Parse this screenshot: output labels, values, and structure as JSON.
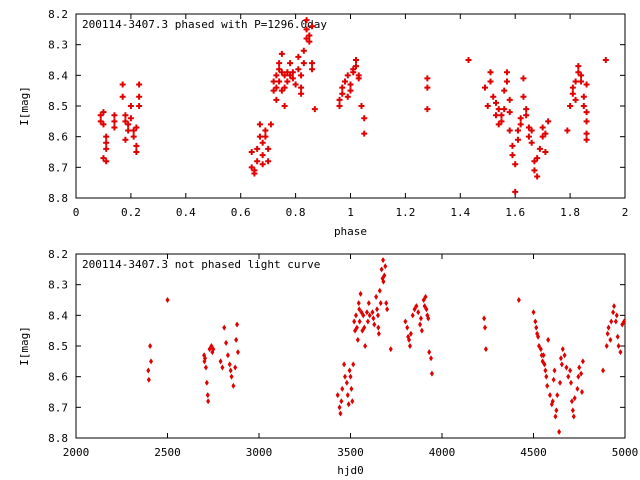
{
  "chart_data": [
    {
      "type": "scatter",
      "title": "200114-3407.3 phased with P=1296.0day",
      "xlabel": "phase",
      "ylabel": "I[mag]",
      "xlim": [
        0,
        2
      ],
      "ylim": [
        8.8,
        8.2
      ],
      "y_inverted": true,
      "xticks": [
        "0",
        "0.2",
        "0.4",
        "0.6",
        "0.8",
        "1",
        "1.2",
        "1.4",
        "1.6",
        "1.8",
        "2"
      ],
      "xtick_values": [
        0,
        0.2,
        0.4,
        0.6,
        0.8,
        1.0,
        1.2,
        1.4,
        1.6,
        1.8,
        2.0
      ],
      "yticks": [
        "8.2",
        "8.3",
        "8.4",
        "8.5",
        "8.6",
        "8.7",
        "8.8"
      ],
      "ytick_values": [
        8.2,
        8.3,
        8.4,
        8.5,
        8.6,
        8.7,
        8.8
      ],
      "marker": "star",
      "color": "#e00000",
      "points": [
        [
          0.09,
          8.53
        ],
        [
          0.09,
          8.55
        ],
        [
          0.1,
          8.52
        ],
        [
          0.1,
          8.56
        ],
        [
          0.11,
          8.6
        ],
        [
          0.11,
          8.62
        ],
        [
          0.11,
          8.64
        ],
        [
          0.1,
          8.67
        ],
        [
          0.11,
          8.68
        ],
        [
          0.14,
          8.53
        ],
        [
          0.14,
          8.55
        ],
        [
          0.14,
          8.57
        ],
        [
          0.17,
          8.43
        ],
        [
          0.17,
          8.47
        ],
        [
          0.18,
          8.53
        ],
        [
          0.18,
          8.55
        ],
        [
          0.18,
          8.61
        ],
        [
          0.19,
          8.56
        ],
        [
          0.19,
          8.58
        ],
        [
          0.2,
          8.5
        ],
        [
          0.2,
          8.54
        ],
        [
          0.21,
          8.58
        ],
        [
          0.21,
          8.6
        ],
        [
          0.22,
          8.57
        ],
        [
          0.22,
          8.63
        ],
        [
          0.22,
          8.65
        ],
        [
          0.23,
          8.43
        ],
        [
          0.23,
          8.47
        ],
        [
          0.23,
          8.5
        ],
        [
          0.64,
          8.65
        ],
        [
          0.64,
          8.7
        ],
        [
          0.65,
          8.71
        ],
        [
          0.65,
          8.72
        ],
        [
          0.66,
          8.68
        ],
        [
          0.66,
          8.64
        ],
        [
          0.67,
          8.56
        ],
        [
          0.67,
          8.6
        ],
        [
          0.68,
          8.62
        ],
        [
          0.68,
          8.66
        ],
        [
          0.68,
          8.69
        ],
        [
          0.69,
          8.58
        ],
        [
          0.69,
          8.6
        ],
        [
          0.7,
          8.64
        ],
        [
          0.7,
          8.68
        ],
        [
          0.71,
          8.56
        ],
        [
          0.72,
          8.42
        ],
        [
          0.72,
          8.45
        ],
        [
          0.73,
          8.4
        ],
        [
          0.73,
          8.44
        ],
        [
          0.73,
          8.48
        ],
        [
          0.74,
          8.36
        ],
        [
          0.74,
          8.38
        ],
        [
          0.74,
          8.42
        ],
        [
          0.75,
          8.33
        ],
        [
          0.75,
          8.39
        ],
        [
          0.75,
          8.45
        ],
        [
          0.76,
          8.4
        ],
        [
          0.76,
          8.44
        ],
        [
          0.76,
          8.5
        ],
        [
          0.77,
          8.39
        ],
        [
          0.77,
          8.42
        ],
        [
          0.78,
          8.36
        ],
        [
          0.78,
          8.4
        ],
        [
          0.79,
          8.39
        ],
        [
          0.79,
          8.41
        ],
        [
          0.8,
          8.43
        ],
        [
          0.81,
          8.34
        ],
        [
          0.81,
          8.38
        ],
        [
          0.82,
          8.4
        ],
        [
          0.82,
          8.44
        ],
        [
          0.82,
          8.46
        ],
        [
          0.83,
          8.32
        ],
        [
          0.83,
          8.36
        ],
        [
          0.84,
          8.25
        ],
        [
          0.84,
          8.28
        ],
        [
          0.84,
          8.22
        ],
        [
          0.85,
          8.29
        ],
        [
          0.85,
          8.27
        ],
        [
          0.86,
          8.24
        ],
        [
          0.86,
          8.36
        ],
        [
          0.86,
          8.38
        ],
        [
          0.87,
          8.51
        ],
        [
          0.96,
          8.48
        ],
        [
          0.96,
          8.5
        ],
        [
          0.97,
          8.44
        ],
        [
          0.97,
          8.46
        ],
        [
          0.98,
          8.42
        ],
        [
          0.99,
          8.4
        ],
        [
          0.99,
          8.47
        ],
        [
          1.0,
          8.45
        ],
        [
          1.0,
          8.43
        ],
        [
          1.01,
          8.38
        ],
        [
          1.01,
          8.39
        ],
        [
          1.02,
          8.37
        ],
        [
          1.02,
          8.35
        ],
        [
          1.03,
          8.4
        ],
        [
          1.03,
          8.41
        ],
        [
          1.04,
          8.5
        ],
        [
          1.05,
          8.54
        ],
        [
          1.05,
          8.59
        ],
        [
          1.28,
          8.41
        ],
        [
          1.28,
          8.44
        ],
        [
          1.28,
          8.51
        ],
        [
          1.43,
          8.35
        ],
        [
          1.49,
          8.44
        ],
        [
          1.5,
          8.5
        ],
        [
          1.51,
          8.39
        ],
        [
          1.51,
          8.42
        ],
        [
          1.52,
          8.47
        ],
        [
          1.53,
          8.49
        ],
        [
          1.53,
          8.53
        ],
        [
          1.54,
          8.51
        ],
        [
          1.54,
          8.56
        ],
        [
          1.55,
          8.53
        ],
        [
          1.55,
          8.55
        ],
        [
          1.56,
          8.51
        ],
        [
          1.56,
          8.45
        ],
        [
          1.57,
          8.39
        ],
        [
          1.57,
          8.42
        ],
        [
          1.58,
          8.48
        ],
        [
          1.58,
          8.52
        ],
        [
          1.58,
          8.58
        ],
        [
          1.59,
          8.63
        ],
        [
          1.59,
          8.66
        ],
        [
          1.6,
          8.69
        ],
        [
          1.6,
          8.78
        ],
        [
          1.61,
          8.58
        ],
        [
          1.61,
          8.61
        ],
        [
          1.62,
          8.54
        ],
        [
          1.62,
          8.56
        ],
        [
          1.63,
          8.41
        ],
        [
          1.63,
          8.47
        ],
        [
          1.64,
          8.51
        ],
        [
          1.64,
          8.53
        ],
        [
          1.65,
          8.57
        ],
        [
          1.65,
          8.6
        ],
        [
          1.66,
          8.58
        ],
        [
          1.66,
          8.62
        ],
        [
          1.67,
          8.68
        ],
        [
          1.67,
          8.71
        ],
        [
          1.68,
          8.73
        ],
        [
          1.68,
          8.67
        ],
        [
          1.69,
          8.64
        ],
        [
          1.7,
          8.6
        ],
        [
          1.7,
          8.57
        ],
        [
          1.71,
          8.59
        ],
        [
          1.71,
          8.65
        ],
        [
          1.72,
          8.55
        ],
        [
          1.79,
          8.58
        ],
        [
          1.8,
          8.5
        ],
        [
          1.81,
          8.46
        ],
        [
          1.81,
          8.44
        ],
        [
          1.82,
          8.48
        ],
        [
          1.82,
          8.42
        ],
        [
          1.83,
          8.39
        ],
        [
          1.83,
          8.37
        ],
        [
          1.84,
          8.42
        ],
        [
          1.84,
          8.4
        ],
        [
          1.85,
          8.47
        ],
        [
          1.85,
          8.5
        ],
        [
          1.86,
          8.52
        ],
        [
          1.86,
          8.55
        ],
        [
          1.86,
          8.59
        ],
        [
          1.86,
          8.61
        ],
        [
          1.86,
          8.43
        ],
        [
          1.93,
          8.35
        ]
      ]
    },
    {
      "type": "scatter",
      "title": "200114-3407.3 not phased light curve",
      "xlabel": "hjd0",
      "ylabel": "I[mag]",
      "xlim": [
        2000,
        5000
      ],
      "ylim": [
        8.8,
        8.2
      ],
      "y_inverted": true,
      "xticks": [
        "2000",
        "2500",
        "3000",
        "3500",
        "4000",
        "4500",
        "5000"
      ],
      "xtick_values": [
        2000,
        2500,
        3000,
        3500,
        4000,
        4500,
        5000
      ],
      "yticks": [
        "8.2",
        "8.3",
        "8.4",
        "8.5",
        "8.6",
        "8.7",
        "8.8"
      ],
      "ytick_values": [
        8.2,
        8.3,
        8.4,
        8.5,
        8.6,
        8.7,
        8.8
      ],
      "marker": "diamond",
      "color": "#e00000",
      "points": [
        [
          2395,
          8.58
        ],
        [
          2398,
          8.61
        ],
        [
          2405,
          8.5
        ],
        [
          2410,
          8.55
        ],
        [
          2500,
          8.35
        ],
        [
          2700,
          8.53
        ],
        [
          2702,
          8.55
        ],
        [
          2705,
          8.54
        ],
        [
          2710,
          8.57
        ],
        [
          2715,
          8.62
        ],
        [
          2720,
          8.66
        ],
        [
          2722,
          8.68
        ],
        [
          2730,
          8.51
        ],
        [
          2740,
          8.5
        ],
        [
          2745,
          8.52
        ],
        [
          2750,
          8.51
        ],
        [
          2790,
          8.55
        ],
        [
          2800,
          8.57
        ],
        [
          2810,
          8.44
        ],
        [
          2820,
          8.49
        ],
        [
          2830,
          8.53
        ],
        [
          2840,
          8.56
        ],
        [
          2845,
          8.58
        ],
        [
          2850,
          8.6
        ],
        [
          2860,
          8.63
        ],
        [
          2870,
          8.57
        ],
        [
          2875,
          8.48
        ],
        [
          2880,
          8.43
        ],
        [
          2885,
          8.52
        ],
        [
          3430,
          8.66
        ],
        [
          3440,
          8.7
        ],
        [
          3445,
          8.72
        ],
        [
          3450,
          8.68
        ],
        [
          3455,
          8.64
        ],
        [
          3465,
          8.56
        ],
        [
          3470,
          8.6
        ],
        [
          3480,
          8.62
        ],
        [
          3485,
          8.66
        ],
        [
          3490,
          8.69
        ],
        [
          3495,
          8.58
        ],
        [
          3500,
          8.6
        ],
        [
          3505,
          8.64
        ],
        [
          3510,
          8.68
        ],
        [
          3515,
          8.56
        ],
        [
          3520,
          8.42
        ],
        [
          3525,
          8.45
        ],
        [
          3530,
          8.4
        ],
        [
          3535,
          8.44
        ],
        [
          3540,
          8.48
        ],
        [
          3545,
          8.36
        ],
        [
          3548,
          8.38
        ],
        [
          3550,
          8.42
        ],
        [
          3555,
          8.33
        ],
        [
          3560,
          8.39
        ],
        [
          3565,
          8.45
        ],
        [
          3570,
          8.4
        ],
        [
          3575,
          8.44
        ],
        [
          3580,
          8.5
        ],
        [
          3590,
          8.39
        ],
        [
          3595,
          8.42
        ],
        [
          3600,
          8.36
        ],
        [
          3605,
          8.4
        ],
        [
          3620,
          8.39
        ],
        [
          3625,
          8.41
        ],
        [
          3630,
          8.43
        ],
        [
          3640,
          8.34
        ],
        [
          3645,
          8.38
        ],
        [
          3650,
          8.4
        ],
        [
          3652,
          8.44
        ],
        [
          3655,
          8.46
        ],
        [
          3660,
          8.32
        ],
        [
          3665,
          8.36
        ],
        [
          3670,
          8.25
        ],
        [
          3675,
          8.28
        ],
        [
          3678,
          8.22
        ],
        [
          3680,
          8.29
        ],
        [
          3685,
          8.27
        ],
        [
          3690,
          8.24
        ],
        [
          3695,
          8.36
        ],
        [
          3700,
          8.38
        ],
        [
          3720,
          8.51
        ],
        [
          3800,
          8.42
        ],
        [
          3810,
          8.44
        ],
        [
          3815,
          8.47
        ],
        [
          3820,
          8.48
        ],
        [
          3825,
          8.5
        ],
        [
          3830,
          8.46
        ],
        [
          3840,
          8.4
        ],
        [
          3850,
          8.38
        ],
        [
          3860,
          8.37
        ],
        [
          3870,
          8.39
        ],
        [
          3880,
          8.43
        ],
        [
          3885,
          8.41
        ],
        [
          3890,
          8.45
        ],
        [
          3900,
          8.35
        ],
        [
          3905,
          8.37
        ],
        [
          3910,
          8.34
        ],
        [
          3915,
          8.38
        ],
        [
          3920,
          8.4
        ],
        [
          3925,
          8.41
        ],
        [
          3930,
          8.52
        ],
        [
          3940,
          8.54
        ],
        [
          3945,
          8.59
        ],
        [
          4230,
          8.41
        ],
        [
          4235,
          8.44
        ],
        [
          4240,
          8.51
        ],
        [
          4420,
          8.35
        ],
        [
          4500,
          8.39
        ],
        [
          4510,
          8.42
        ],
        [
          4515,
          8.44
        ],
        [
          4520,
          8.46
        ],
        [
          4525,
          8.47
        ],
        [
          4530,
          8.5
        ],
        [
          4540,
          8.51
        ],
        [
          4545,
          8.53
        ],
        [
          4550,
          8.55
        ],
        [
          4555,
          8.53
        ],
        [
          4560,
          8.56
        ],
        [
          4565,
          8.58
        ],
        [
          4570,
          8.6
        ],
        [
          4575,
          8.63
        ],
        [
          4580,
          8.48
        ],
        [
          4590,
          8.66
        ],
        [
          4600,
          8.69
        ],
        [
          4605,
          8.68
        ],
        [
          4610,
          8.61
        ],
        [
          4615,
          8.58
        ],
        [
          4620,
          8.73
        ],
        [
          4625,
          8.71
        ],
        [
          4630,
          8.66
        ],
        [
          4640,
          8.78
        ],
        [
          4645,
          8.62
        ],
        [
          4650,
          8.54
        ],
        [
          4655,
          8.56
        ],
        [
          4660,
          8.51
        ],
        [
          4670,
          8.53
        ],
        [
          4680,
          8.57
        ],
        [
          4690,
          8.6
        ],
        [
          4700,
          8.58
        ],
        [
          4705,
          8.62
        ],
        [
          4710,
          8.68
        ],
        [
          4715,
          8.71
        ],
        [
          4720,
          8.73
        ],
        [
          4725,
          8.67
        ],
        [
          4740,
          8.64
        ],
        [
          4745,
          8.6
        ],
        [
          4750,
          8.57
        ],
        [
          4760,
          8.59
        ],
        [
          4765,
          8.65
        ],
        [
          4770,
          8.55
        ],
        [
          4880,
          8.58
        ],
        [
          4900,
          8.5
        ],
        [
          4905,
          8.46
        ],
        [
          4910,
          8.44
        ],
        [
          4920,
          8.48
        ],
        [
          4925,
          8.42
        ],
        [
          4935,
          8.39
        ],
        [
          4940,
          8.37
        ],
        [
          4950,
          8.42
        ],
        [
          4955,
          8.4
        ],
        [
          4960,
          8.47
        ],
        [
          4965,
          8.5
        ],
        [
          4975,
          8.52
        ],
        [
          4985,
          8.43
        ],
        [
          4995,
          8.42
        ]
      ]
    }
  ]
}
